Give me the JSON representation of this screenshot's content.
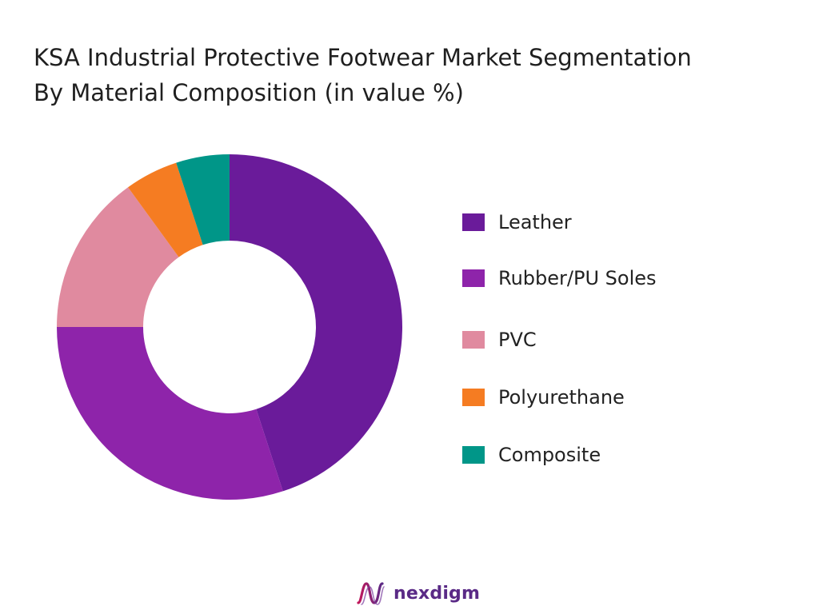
{
  "title_lines": [
    "KSA Industrial Protective Footwear Market Segmentation",
    "By Material Composition (in value %)"
  ],
  "chart_data": {
    "type": "pie",
    "variant": "donut",
    "categories": [
      "Leather",
      "Rubber/PU Soles",
      "PVC",
      "Polyurethane",
      "Composite"
    ],
    "values": [
      45,
      30,
      15,
      5,
      5
    ],
    "colors": [
      "#6a1b9a",
      "#8e24aa",
      "#e08a9f",
      "#f57c22",
      "#009688"
    ],
    "unit": "%",
    "start_angle": "12 o'clock",
    "direction": "clockwise",
    "legend_position": "right"
  },
  "legend": {
    "items": [
      {
        "label": "Leather",
        "color": "#6a1b9a"
      },
      {
        "label": "Rubber/PU Soles",
        "color": "#8e24aa"
      },
      {
        "label": "PVC",
        "color": "#e08a9f"
      },
      {
        "label": "Polyurethane",
        "color": "#f57c22"
      },
      {
        "label": "Composite",
        "color": "#009688"
      }
    ]
  },
  "brand": {
    "name": "nexdigm",
    "logo_icon": "nexdigm-wave-logo-icon",
    "color": "#5a2a86"
  }
}
